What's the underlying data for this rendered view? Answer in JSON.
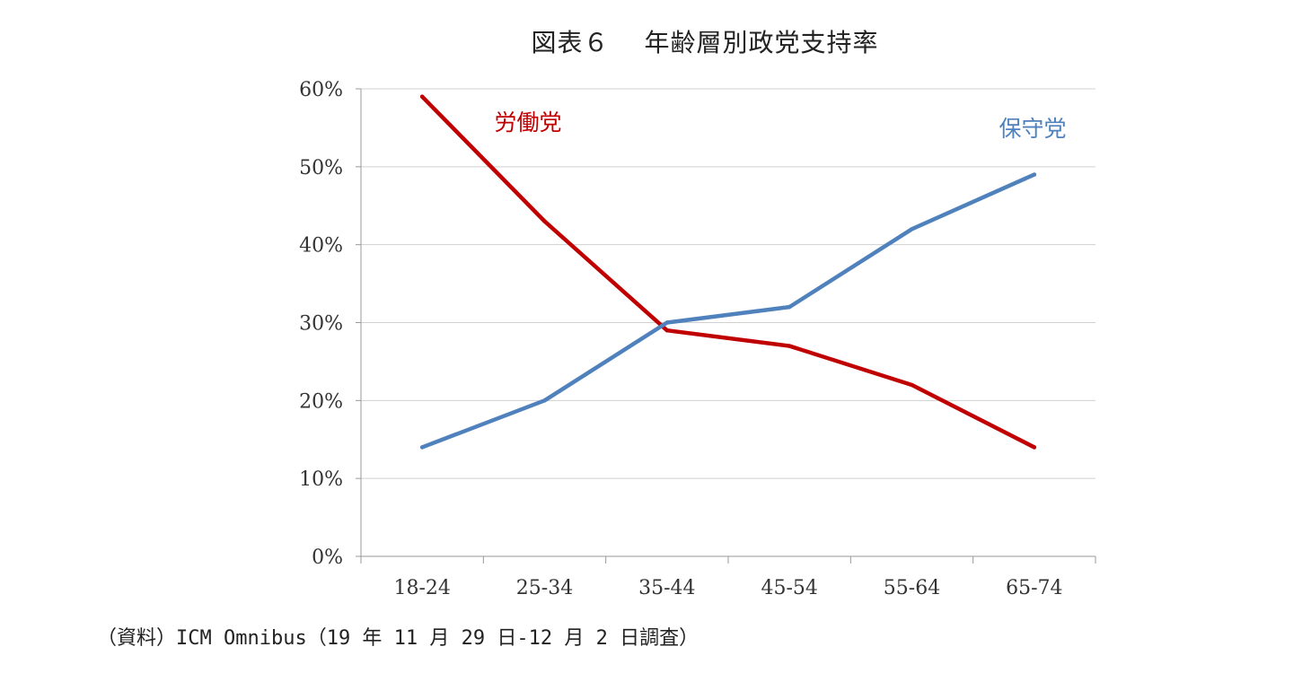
{
  "chart_data": {
    "type": "line",
    "title": "図表６　 年齢層別政党支持率",
    "categories": [
      "18-24",
      "25-34",
      "35-44",
      "45-54",
      "55-64",
      "65-74"
    ],
    "series": [
      {
        "name": "労働党",
        "color": "#c00000",
        "values": [
          59,
          43,
          29,
          27,
          22,
          14
        ]
      },
      {
        "name": "保守党",
        "color": "#4f81bd",
        "values": [
          14,
          20,
          30,
          32,
          42,
          49
        ]
      }
    ],
    "yticks": [
      "0%",
      "10%",
      "20%",
      "30%",
      "40%",
      "50%",
      "60%"
    ],
    "ylim": [
      0,
      60
    ],
    "grid": true,
    "xlabel": "",
    "ylabel": ""
  },
  "source": "（資料）ICM Omnibus（19 年 11 月 29 日-12 月 2 日調査）"
}
